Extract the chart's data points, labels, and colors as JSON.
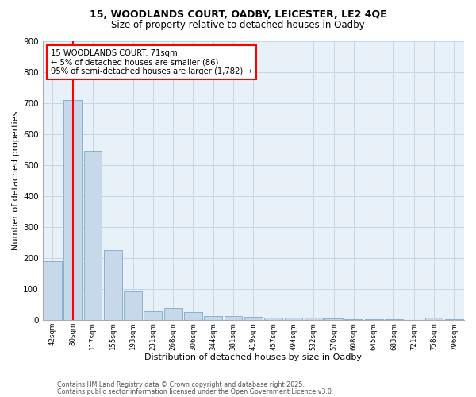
{
  "title_line1": "15, WOODLANDS COURT, OADBY, LEICESTER, LE2 4QE",
  "title_line2": "Size of property relative to detached houses in Oadby",
  "xlabel": "Distribution of detached houses by size in Oadby",
  "ylabel": "Number of detached properties",
  "bar_color": "#c8d8eb",
  "bar_edge_color": "#7aaac8",
  "categories": [
    "42sqm",
    "80sqm",
    "117sqm",
    "155sqm",
    "193sqm",
    "231sqm",
    "268sqm",
    "306sqm",
    "344sqm",
    "381sqm",
    "419sqm",
    "457sqm",
    "494sqm",
    "532sqm",
    "570sqm",
    "608sqm",
    "645sqm",
    "683sqm",
    "721sqm",
    "758sqm",
    "796sqm"
  ],
  "values": [
    190,
    710,
    545,
    225,
    92,
    28,
    40,
    25,
    13,
    13,
    11,
    8,
    7,
    8,
    5,
    2,
    2,
    2,
    1,
    8,
    2
  ],
  "ylim": [
    0,
    900
  ],
  "yticks": [
    0,
    100,
    200,
    300,
    400,
    500,
    600,
    700,
    800,
    900
  ],
  "annotation_text": "15 WOODLANDS COURT: 71sqm\n← 5% of detached houses are smaller (86)\n95% of semi-detached houses are larger (1,782) →",
  "red_line_x": 1,
  "grid_color": "#c5d5e5",
  "background_color": "#e8f0f8",
  "footer_line1": "Contains HM Land Registry data © Crown copyright and database right 2025.",
  "footer_line2": "Contains public sector information licensed under the Open Government Licence v3.0."
}
